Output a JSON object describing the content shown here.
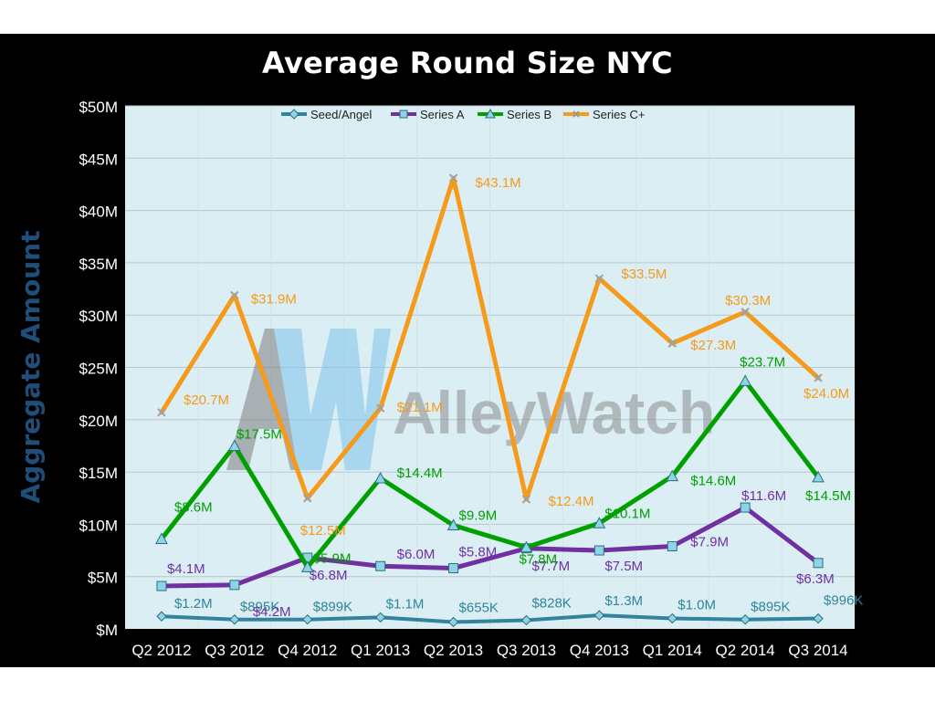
{
  "colors": {
    "background": "#000000",
    "plot_background": "#dbeef4",
    "seed": "#31849b",
    "series_a": "#7030a0",
    "series_b": "#00a000",
    "series_c": "#f59a1b",
    "axis_text": "#ffffff",
    "y_title": "#1f4e79"
  },
  "watermark": {
    "brand": "AlleyWatch"
  },
  "chart_data": {
    "type": "line",
    "title": "Average Round Size NYC",
    "ylabel": "Aggregate Amount",
    "xlabel": "",
    "ylim": [
      0,
      50
    ],
    "y_unit": "$M",
    "yticks": [
      0,
      5,
      10,
      15,
      20,
      25,
      30,
      35,
      40,
      45,
      50
    ],
    "ytick_labels": [
      "$M",
      "$5M",
      "$10M",
      "$15M",
      "$20M",
      "$25M",
      "$30M",
      "$35M",
      "$40M",
      "$45M",
      "$50M"
    ],
    "grid": true,
    "legend_position": "top",
    "categories": [
      "Q2 2012",
      "Q3 2012",
      "Q4 2012",
      "Q1 2013",
      "Q2 2013",
      "Q3 2013",
      "Q4 2013",
      "Q1 2014",
      "Q2 2014",
      "Q3 2014"
    ],
    "series": [
      {
        "name": "Seed/Angel",
        "marker": "diamond",
        "values": [
          1.2,
          0.895,
          0.899,
          1.1,
          0.655,
          0.828,
          1.3,
          1.0,
          0.895,
          0.996
        ],
        "labels": [
          "$1.2M",
          "$895K",
          "$899K",
          "$1.1M",
          "$655K",
          "$828K",
          "$1.3M",
          "$1.0M",
          "$895K",
          "$996K"
        ]
      },
      {
        "name": "Series A",
        "marker": "square",
        "values": [
          4.1,
          4.2,
          6.8,
          6.0,
          5.8,
          7.7,
          7.5,
          7.9,
          11.6,
          6.3
        ],
        "labels": [
          "$4.1M",
          "$4.2M",
          "$6.8M",
          "$6.0M",
          "$5.8M",
          "$7.7M",
          "$7.5M",
          "$7.9M",
          "$11.6M",
          "$6.3M"
        ]
      },
      {
        "name": "Series B",
        "marker": "triangle",
        "values": [
          8.6,
          17.5,
          5.9,
          14.4,
          9.9,
          7.8,
          10.1,
          14.6,
          23.7,
          14.5
        ],
        "labels": [
          "$8.6M",
          "$17.5M",
          "$5.9M",
          "$14.4M",
          "$9.9M",
          "$7.8M",
          "$10.1M",
          "$14.6M",
          "$23.7M",
          "$14.5M"
        ]
      },
      {
        "name": "Series C+",
        "marker": "x",
        "values": [
          20.7,
          31.9,
          12.5,
          21.1,
          43.1,
          12.4,
          33.5,
          27.3,
          30.3,
          24.0
        ],
        "labels": [
          "$20.7M",
          "$31.9M",
          "$12.5M",
          "$21.1M",
          "$43.1M",
          "$12.4M",
          "$33.5M",
          "$27.3M",
          "$30.3M",
          "$24.0M"
        ]
      }
    ]
  }
}
